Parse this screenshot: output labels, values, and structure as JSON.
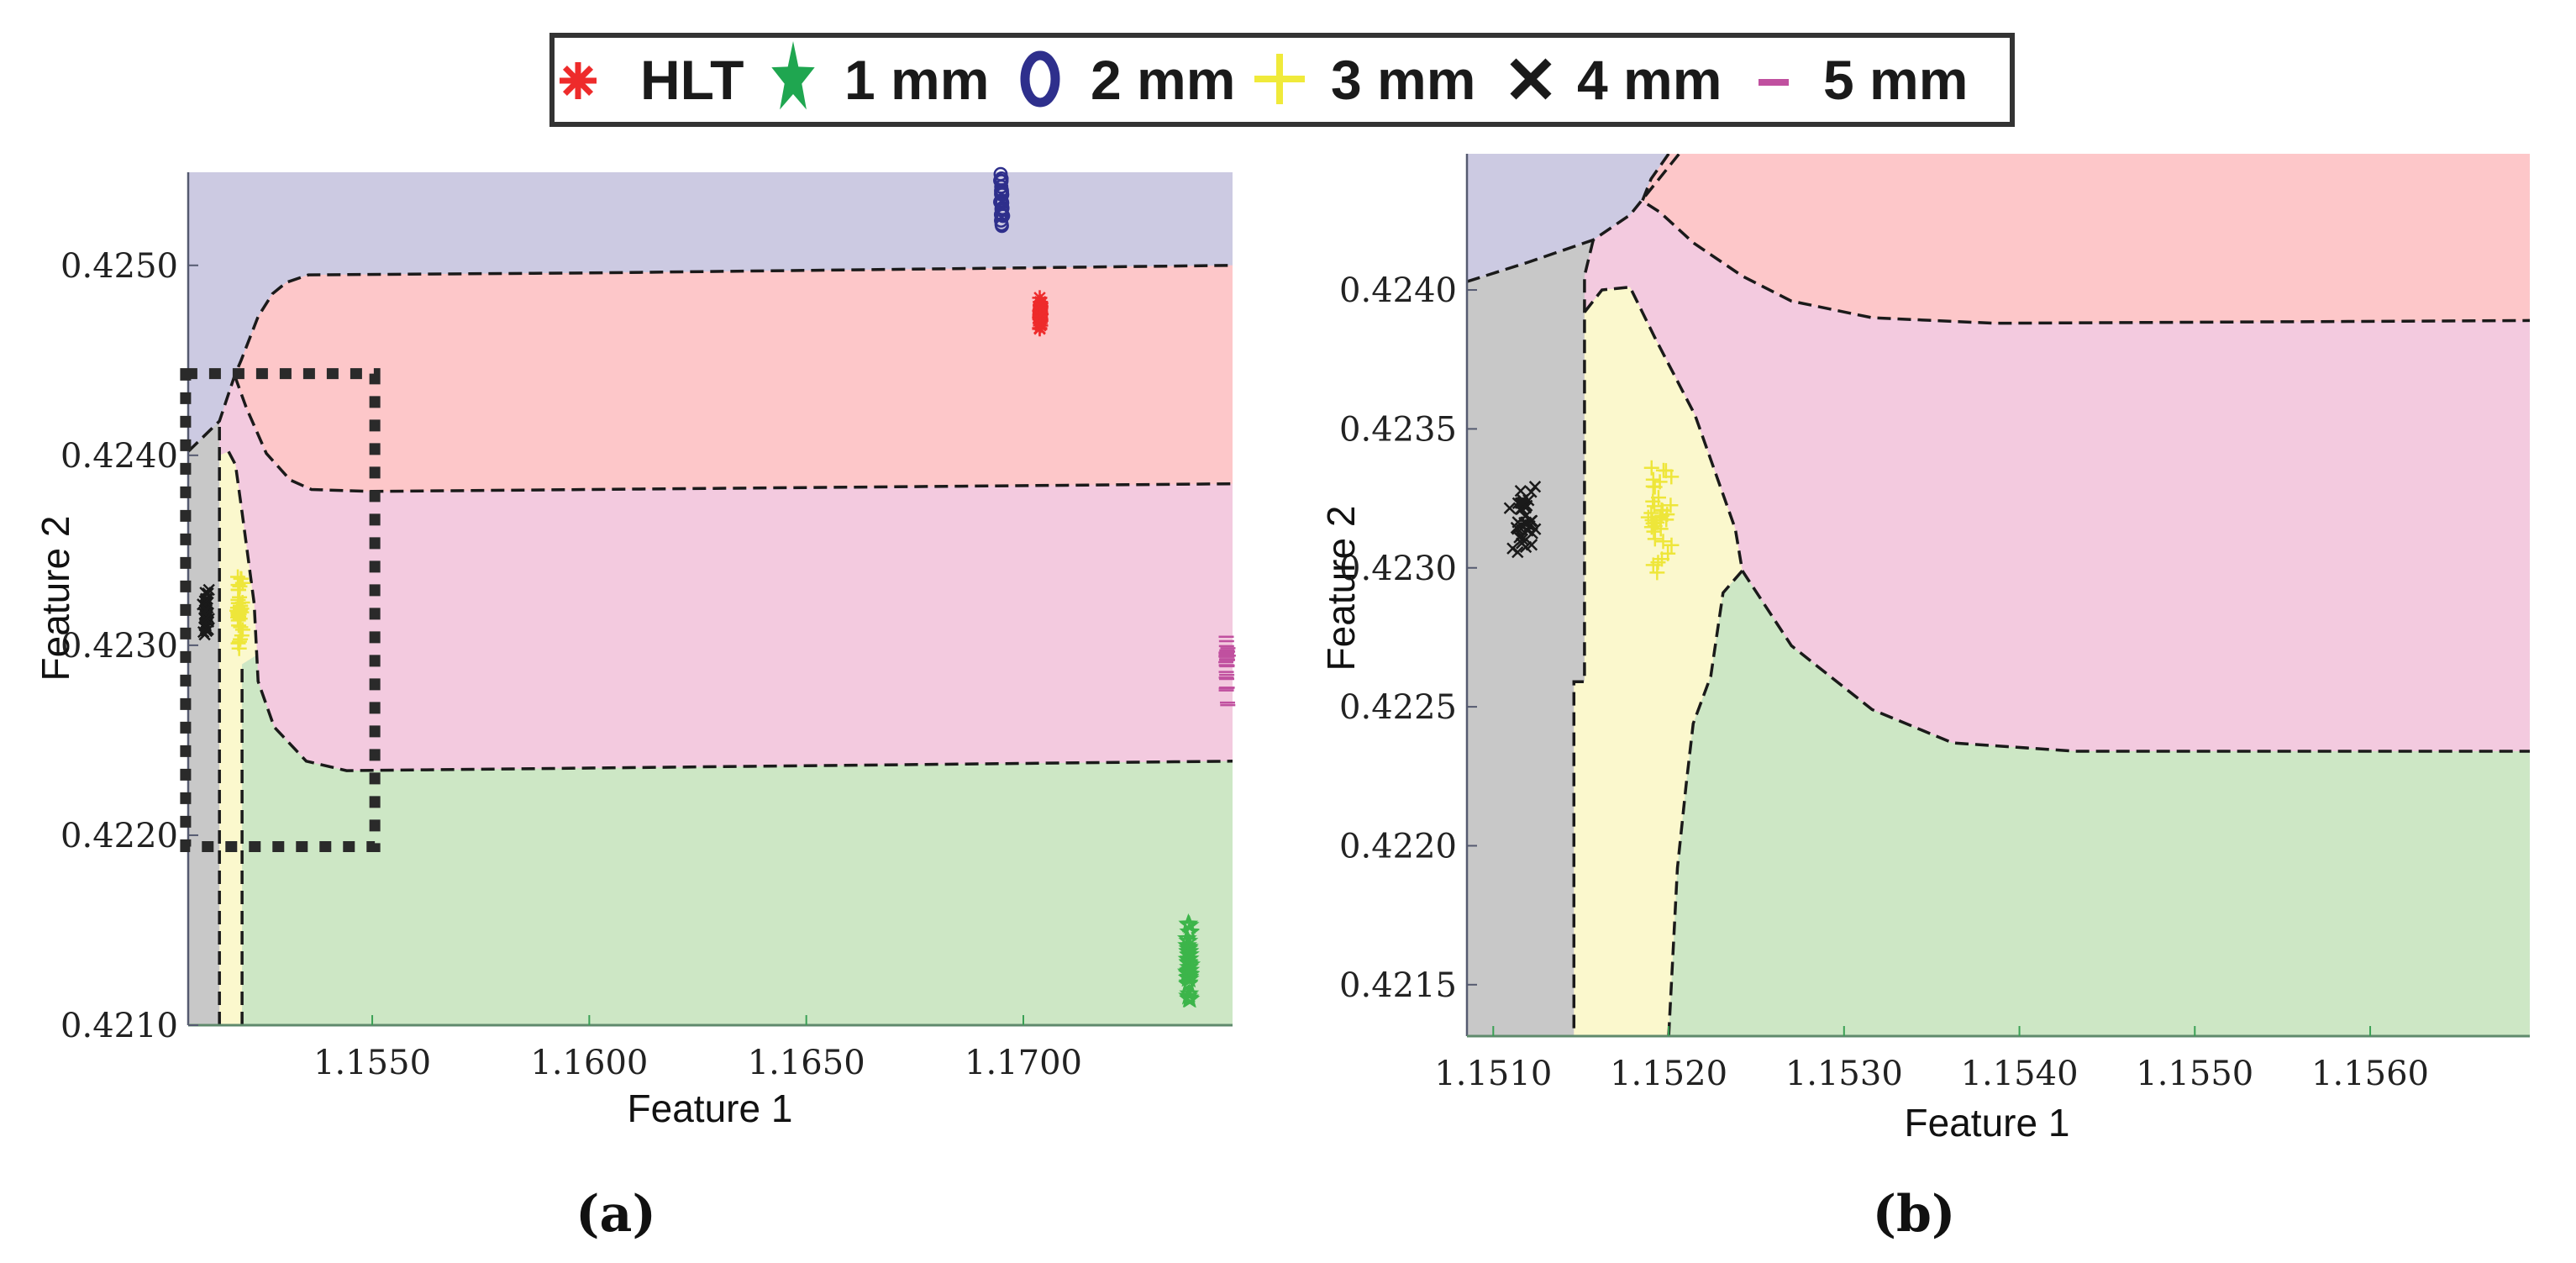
{
  "legend": {
    "items": [
      {
        "label": "HLT",
        "marker": "asterisk",
        "color": "#ee2b2b"
      },
      {
        "label": "1 mm",
        "marker": "star",
        "color": "#1fa650"
      },
      {
        "label": "2 mm",
        "marker": "circle",
        "color": "#2e2f8c"
      },
      {
        "label": "3 mm",
        "marker": "plus",
        "color": "#f0ea3a"
      },
      {
        "label": "4 mm",
        "marker": "x",
        "color": "#1a1a1a"
      },
      {
        "label": "5 mm",
        "marker": "dash",
        "color": "#c0509f"
      }
    ]
  },
  "panel_labels": {
    "a": "(a)",
    "b": "(b)"
  },
  "chart_data": [
    {
      "type": "scatter",
      "panel": "a",
      "xlabel": "Feature 1",
      "ylabel": "Feature 2",
      "xlim": [
        1.15076,
        1.17482
      ],
      "ylim": [
        0.421,
        0.42549
      ],
      "xticks": [
        1.155,
        1.16,
        1.165,
        1.17
      ],
      "xtick_labels": [
        "1.1550",
        "1.1600",
        "1.1650",
        "1.1700"
      ],
      "yticks": [
        0.421,
        0.422,
        0.423,
        0.424,
        0.425
      ],
      "ytick_labels": [
        "0.4210",
        "0.4220",
        "0.4230",
        "0.4240",
        "0.4250"
      ],
      "regions": [
        {
          "class": "5 mm",
          "color": "#f3cadf",
          "polygon": "background"
        },
        {
          "class": "2 mm",
          "color": "#cccae2",
          "polygon": [
            [
              1.15076,
              0.42402
            ],
            [
              1.15148,
              0.42418
            ],
            [
              1.15183,
              0.42442
            ],
            [
              1.15198,
              0.4245
            ],
            [
              1.15237,
              0.42473
            ],
            [
              1.1527,
              0.42485
            ],
            [
              1.15302,
              0.42491
            ],
            [
              1.15353,
              0.42495
            ],
            [
              1.16,
              0.42496
            ],
            [
              1.17482,
              0.425
            ],
            [
              1.17482,
              0.42549
            ],
            [
              1.15076,
              0.42549
            ]
          ]
        },
        {
          "class": "HLT",
          "color": "#fdc7c9",
          "polygon": [
            [
              1.15183,
              0.42442
            ],
            [
              1.15198,
              0.4245
            ],
            [
              1.15237,
              0.42473
            ],
            [
              1.1527,
              0.42485
            ],
            [
              1.15302,
              0.42491
            ],
            [
              1.15353,
              0.42495
            ],
            [
              1.16,
              0.42496
            ],
            [
              1.17482,
              0.425
            ],
            [
              1.17482,
              0.42385
            ],
            [
              1.155,
              0.42381
            ],
            [
              1.1536,
              0.42382
            ],
            [
              1.15311,
              0.42387
            ],
            [
              1.15256,
              0.42401
            ],
            [
              1.1521,
              0.42425
            ]
          ]
        },
        {
          "class": "4 mm",
          "color": "#c8c8c8",
          "polygon": [
            [
              1.15076,
              0.421
            ],
            [
              1.15076,
              0.42402
            ],
            [
              1.15148,
              0.42418
            ],
            [
              1.15148,
              0.421
            ]
          ]
        },
        {
          "class": "3 mm",
          "color": "#fbf8cd",
          "polygon": [
            [
              1.15148,
              0.421
            ],
            [
              1.15148,
              0.424
            ],
            [
              1.15169,
              0.42402
            ],
            [
              1.15185,
              0.42395
            ],
            [
              1.152,
              0.4237
            ],
            [
              1.15228,
              0.42322
            ],
            [
              1.15235,
              0.42295
            ],
            [
              1.152,
              0.4229
            ],
            [
              1.152,
              0.421
            ]
          ]
        },
        {
          "class": "1 mm",
          "color": "#cde7c5",
          "polygon": [
            [
              1.152,
              0.421
            ],
            [
              1.152,
              0.4229
            ],
            [
              1.15235,
              0.42295
            ],
            [
              1.15237,
              0.42281
            ],
            [
              1.15274,
              0.42257
            ],
            [
              1.15348,
              0.42239
            ],
            [
              1.15441,
              0.42234
            ],
            [
              1.17482,
              0.42239
            ],
            [
              1.17482,
              0.421
            ]
          ]
        }
      ],
      "boundaries": [
        [
          [
            1.15076,
            0.42402
          ],
          [
            1.15148,
            0.42418
          ],
          [
            1.15183,
            0.42442
          ],
          [
            1.15198,
            0.4245
          ],
          [
            1.15237,
            0.42473
          ],
          [
            1.1527,
            0.42485
          ],
          [
            1.15302,
            0.42491
          ],
          [
            1.15353,
            0.42495
          ],
          [
            1.16,
            0.42496
          ],
          [
            1.17482,
            0.425
          ]
        ],
        [
          [
            1.15183,
            0.42442
          ],
          [
            1.1521,
            0.42425
          ],
          [
            1.15256,
            0.42401
          ],
          [
            1.15311,
            0.42387
          ],
          [
            1.1536,
            0.42382
          ],
          [
            1.155,
            0.42381
          ],
          [
            1.17482,
            0.42385
          ]
        ],
        [
          [
            1.15169,
            0.42402
          ],
          [
            1.15185,
            0.42395
          ],
          [
            1.152,
            0.4237
          ],
          [
            1.15228,
            0.42322
          ],
          [
            1.15237,
            0.42281
          ],
          [
            1.15274,
            0.42257
          ],
          [
            1.15348,
            0.42239
          ],
          [
            1.15441,
            0.42234
          ],
          [
            1.17482,
            0.42239
          ]
        ],
        [
          [
            1.15148,
            0.421
          ],
          [
            1.15148,
            0.42418
          ]
        ],
        [
          [
            1.152,
            0.421
          ],
          [
            1.152,
            0.4229
          ]
        ]
      ],
      "zoom_box": {
        "x": [
          1.1507,
          1.15506
        ],
        "y": [
          0.42194,
          0.42443
        ]
      }
    },
    {
      "type": "scatter",
      "panel": "b",
      "xlabel": "Feature 1",
      "ylabel": "Feature 2",
      "xlim": [
        1.15085,
        1.15691
      ],
      "ylim": [
        0.421315,
        0.42449
      ],
      "xticks": [
        1.151,
        1.152,
        1.153,
        1.154,
        1.155,
        1.156
      ],
      "xtick_labels": [
        "1.1510",
        "1.1520",
        "1.1530",
        "1.1540",
        "1.1550",
        "1.1560"
      ],
      "yticks": [
        0.4215,
        0.422,
        0.4225,
        0.423,
        0.4235,
        0.424
      ],
      "ytick_labels": [
        "0.4215",
        "0.4220",
        "0.4225",
        "0.4230",
        "0.4235",
        "0.4240"
      ],
      "regions": [
        {
          "class": "5 mm",
          "color": "#f3cadf",
          "polygon": "background"
        },
        {
          "class": "2 mm",
          "color": "#cccae2",
          "polygon": [
            [
              1.15085,
              0.42403
            ],
            [
              1.1512,
              0.4241
            ],
            [
              1.15157,
              0.42418
            ],
            [
              1.15178,
              0.42427
            ],
            [
              1.15192,
              0.42438
            ],
            [
              1.15206,
              0.42449
            ],
            [
              1.15085,
              0.42449
            ]
          ]
        },
        {
          "class": "HLT",
          "color": "#fdc7c9",
          "polygon": [
            [
              1.152,
              0.42449
            ],
            [
              1.1519,
              0.4244
            ],
            [
              1.15185,
              0.42432
            ],
            [
              1.15195,
              0.42428
            ],
            [
              1.15214,
              0.42417
            ],
            [
              1.15242,
              0.42405
            ],
            [
              1.1527,
              0.42396
            ],
            [
              1.15316,
              0.4239
            ],
            [
              1.15386,
              0.42388
            ],
            [
              1.15691,
              0.42389
            ],
            [
              1.15691,
              0.42449
            ]
          ]
        },
        {
          "class": "4 mm",
          "color": "#c8c8c8",
          "polygon": [
            [
              1.15085,
              0.421315
            ],
            [
              1.15085,
              0.42403
            ],
            [
              1.1512,
              0.4241
            ],
            [
              1.15157,
              0.42418
            ],
            [
              1.15152,
              0.42405
            ],
            [
              1.15152,
              0.42259
            ],
            [
              1.15146,
              0.42259
            ],
            [
              1.15146,
              0.421315
            ]
          ]
        },
        {
          "class": "3 mm",
          "color": "#fbf8cd",
          "polygon": [
            [
              1.15146,
              0.421315
            ],
            [
              1.15146,
              0.42259
            ],
            [
              1.15152,
              0.42259
            ],
            [
              1.15152,
              0.42392
            ],
            [
              1.15162,
              0.424
            ],
            [
              1.15178,
              0.42401
            ],
            [
              1.15192,
              0.42383
            ],
            [
              1.15215,
              0.42355
            ],
            [
              1.15238,
              0.42314
            ],
            [
              1.15242,
              0.42299
            ],
            [
              1.15231,
              0.42291
            ],
            [
              1.15224,
              0.42261
            ],
            [
              1.15214,
              0.42244
            ],
            [
              1.1521,
              0.42222
            ],
            [
              1.15205,
              0.42192
            ],
            [
              1.152,
              0.421315
            ]
          ]
        },
        {
          "class": "1 mm",
          "color": "#cde7c5",
          "polygon": [
            [
              1.152,
              0.421315
            ],
            [
              1.15205,
              0.42192
            ],
            [
              1.1521,
              0.42222
            ],
            [
              1.15214,
              0.42244
            ],
            [
              1.15224,
              0.42261
            ],
            [
              1.15231,
              0.42291
            ],
            [
              1.15242,
              0.42299
            ],
            [
              1.1527,
              0.42272
            ],
            [
              1.15316,
              0.42249
            ],
            [
              1.15362,
              0.42237
            ],
            [
              1.15432,
              0.42234
            ],
            [
              1.15691,
              0.42234
            ],
            [
              1.15691,
              0.421315
            ]
          ]
        }
      ],
      "boundaries": [
        [
          [
            1.15085,
            0.42403
          ],
          [
            1.1512,
            0.4241
          ],
          [
            1.15157,
            0.42418
          ],
          [
            1.15178,
            0.42427
          ],
          [
            1.15192,
            0.42438
          ],
          [
            1.15206,
            0.42449
          ]
        ],
        [
          [
            1.152,
            0.42449
          ],
          [
            1.1519,
            0.4244
          ],
          [
            1.15185,
            0.42432
          ],
          [
            1.15195,
            0.42428
          ],
          [
            1.15214,
            0.42417
          ],
          [
            1.15242,
            0.42405
          ],
          [
            1.1527,
            0.42396
          ],
          [
            1.15316,
            0.4239
          ],
          [
            1.15386,
            0.42388
          ],
          [
            1.15691,
            0.42389
          ]
        ],
        [
          [
            1.15152,
            0.42392
          ],
          [
            1.15162,
            0.424
          ],
          [
            1.15178,
            0.42401
          ],
          [
            1.15192,
            0.42383
          ],
          [
            1.15215,
            0.42355
          ],
          [
            1.15238,
            0.42314
          ],
          [
            1.15242,
            0.42299
          ],
          [
            1.1527,
            0.42272
          ],
          [
            1.15316,
            0.42249
          ],
          [
            1.15362,
            0.42237
          ],
          [
            1.15432,
            0.42234
          ],
          [
            1.15691,
            0.42234
          ]
        ],
        [
          [
            1.15157,
            0.42418
          ],
          [
            1.15152,
            0.42405
          ],
          [
            1.15152,
            0.42259
          ],
          [
            1.15146,
            0.42259
          ],
          [
            1.15146,
            0.421315
          ]
        ],
        [
          [
            1.15242,
            0.42299
          ],
          [
            1.15231,
            0.42291
          ],
          [
            1.15224,
            0.42261
          ],
          [
            1.15214,
            0.42244
          ],
          [
            1.1521,
            0.42222
          ],
          [
            1.15205,
            0.42192
          ],
          [
            1.152,
            0.421315
          ]
        ]
      ]
    }
  ],
  "clusters": [
    {
      "class": "HLT",
      "x": 1.17039,
      "y": 0.42474,
      "sx": 4e-05,
      "sy": 0.00012,
      "n": 40
    },
    {
      "class": "1 mm",
      "x": 1.17381,
      "y": 0.42133,
      "sx": 5e-05,
      "sy": 0.00028,
      "n": 40
    },
    {
      "class": "2 mm",
      "x": 1.1695,
      "y": 0.42532,
      "sx": 5e-05,
      "sy": 0.0002,
      "n": 30
    },
    {
      "class": "3 mm",
      "x": 1.15194,
      "y": 0.42322,
      "sx": 0.0001,
      "sy": 0.00025,
      "n": 35
    },
    {
      "class": "4 mm",
      "x": 1.15117,
      "y": 0.42318,
      "sx": 0.0001,
      "sy": 0.00018,
      "n": 40
    },
    {
      "class": "5 mm",
      "x": 1.17469,
      "y": 0.4229,
      "sx": 4e-05,
      "sy": 0.00025,
      "n": 35
    }
  ]
}
